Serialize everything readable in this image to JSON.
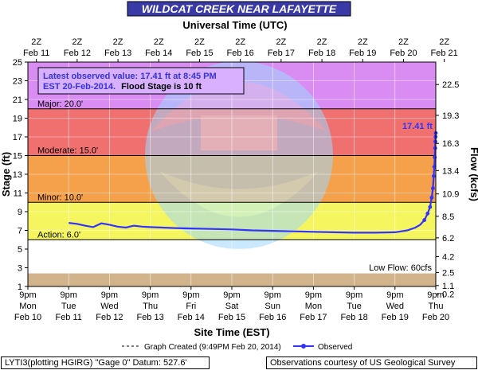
{
  "chart_data": {
    "type": "line",
    "title": "WILDCAT CREEK NEAR LAFAYETTE",
    "top_axis_label": "Universal Time (UTC)",
    "xlabel": "Site Time (EST)",
    "ylabel": "Stage (ft)",
    "y2label": "Flow (kcfs)",
    "ylim": [
      1,
      25
    ],
    "y_ticks": [
      "1",
      "3",
      "5",
      "7",
      "9",
      "11",
      "13",
      "15",
      "17",
      "19",
      "21",
      "23",
      "25"
    ],
    "flow_ticks": [
      {
        "stage": 22.6,
        "label": "22.5"
      },
      {
        "stage": 19.3,
        "label": "19.3"
      },
      {
        "stage": 16.3,
        "label": "16.3"
      },
      {
        "stage": 13.4,
        "label": "13.4"
      },
      {
        "stage": 10.9,
        "label": "10.9"
      },
      {
        "stage": 8.5,
        "label": "8.5"
      },
      {
        "stage": 6.2,
        "label": "6.2"
      },
      {
        "stage": 4.2,
        "label": "4.2"
      },
      {
        "stage": 2.5,
        "label": "2.5"
      },
      {
        "stage": 1.1,
        "label": "1.1"
      },
      {
        "stage": 0.2,
        "label": "0.2"
      }
    ],
    "top_ticks": [
      {
        "l1": "2Z",
        "l2": "Feb 11"
      },
      {
        "l1": "2Z",
        "l2": "Feb 12"
      },
      {
        "l1": "2Z",
        "l2": "Feb 13"
      },
      {
        "l1": "2Z",
        "l2": "Feb 14"
      },
      {
        "l1": "2Z",
        "l2": "Feb 15"
      },
      {
        "l1": "2Z",
        "l2": "Feb 16"
      },
      {
        "l1": "2Z",
        "l2": "Feb 17"
      },
      {
        "l1": "2Z",
        "l2": "Feb 18"
      },
      {
        "l1": "2Z",
        "l2": "Feb 19"
      },
      {
        "l1": "2Z",
        "l2": "Feb 20"
      },
      {
        "l1": "2Z",
        "l2": "Feb 21"
      }
    ],
    "bottom_ticks": [
      {
        "l1": "9pm",
        "l2": "Mon",
        "l3": "Feb 10"
      },
      {
        "l1": "9pm",
        "l2": "Tue",
        "l3": "Feb 11"
      },
      {
        "l1": "9pm",
        "l2": "Wed",
        "l3": "Feb 12"
      },
      {
        "l1": "9pm",
        "l2": "Thu",
        "l3": "Feb 13"
      },
      {
        "l1": "9pm",
        "l2": "Fri",
        "l3": "Feb 14"
      },
      {
        "l1": "9pm",
        "l2": "Sat",
        "l3": "Feb 15"
      },
      {
        "l1": "9pm",
        "l2": "Sun",
        "l3": "Feb 16"
      },
      {
        "l1": "9pm",
        "l2": "Mon",
        "l3": "Feb 17"
      },
      {
        "l1": "9pm",
        "l2": "Tue",
        "l3": "Feb 18"
      },
      {
        "l1": "9pm",
        "l2": "Wed",
        "l3": "Feb 19"
      },
      {
        "l1": "9pm",
        "l2": "Thu",
        "l3": "Feb 20"
      }
    ],
    "x_unit": "days since Mon Feb 10 9pm EST",
    "x_range": [
      0,
      10
    ],
    "bands": [
      {
        "name": "major",
        "from": 20,
        "to": 25,
        "color": "#d98cf2"
      },
      {
        "name": "moderate",
        "from": 15,
        "to": 20,
        "color": "#f07070"
      },
      {
        "name": "minor",
        "from": 10,
        "to": 15,
        "color": "#f5a04a"
      },
      {
        "name": "action",
        "from": 6,
        "to": 10,
        "color": "#f5f560"
      },
      {
        "name": "normal",
        "from": 2.4,
        "to": 6,
        "color": "#ffffff"
      },
      {
        "name": "low-flow",
        "from": 1,
        "to": 2.4,
        "color": "#d2b48c"
      }
    ],
    "threshold_labels": [
      {
        "stage": 20,
        "text": "Major: 20.0'"
      },
      {
        "stage": 15,
        "text": "Moderate: 15.0'"
      },
      {
        "stage": 10,
        "text": "Minor: 10.0'"
      },
      {
        "stage": 6,
        "text": "Action: 6.0'"
      }
    ],
    "low_flow_label": "Low Flow: 60cfs",
    "latest_value_label": "17.41 ft",
    "info_box": {
      "line1": "Latest observed value: 17.41 ft at 8:45 PM",
      "line2a": "EST 20-Feb-2014.",
      "line2b": "Flood Stage is 10 ft"
    },
    "legend": {
      "created": "Graph Created (9:49PM Feb 20, 2014)",
      "observed": "Observed"
    },
    "series": [
      {
        "name": "Observed",
        "color": "#3333ff",
        "x": [
          1.0,
          1.2,
          1.4,
          1.6,
          1.8,
          2.0,
          2.2,
          2.4,
          2.6,
          2.8,
          3.0,
          3.3,
          3.6,
          4.0,
          4.5,
          5.0,
          5.5,
          6.0,
          6.5,
          7.0,
          7.5,
          8.0,
          8.5,
          9.0,
          9.3,
          9.5,
          9.62,
          9.72,
          9.8,
          9.86,
          9.9,
          9.93,
          9.95,
          9.965,
          9.975,
          9.985,
          9.99,
          9.995,
          10.0
        ],
        "y": [
          7.8,
          7.7,
          7.5,
          7.35,
          7.75,
          7.6,
          7.4,
          7.3,
          7.5,
          7.4,
          7.35,
          7.3,
          7.25,
          7.2,
          7.15,
          7.1,
          7.0,
          6.95,
          6.9,
          6.85,
          6.8,
          6.75,
          6.75,
          6.8,
          7.0,
          7.3,
          7.6,
          8.1,
          8.8,
          9.5,
          10.5,
          11.5,
          12.8,
          13.8,
          14.8,
          15.8,
          16.5,
          17.0,
          17.41
        ]
      }
    ]
  },
  "footer": {
    "left": "LYTI3(plotting HGIRG) \"Gage 0\" Datum: 527.6'",
    "right": "Observations courtesy of US Geological Survey"
  }
}
